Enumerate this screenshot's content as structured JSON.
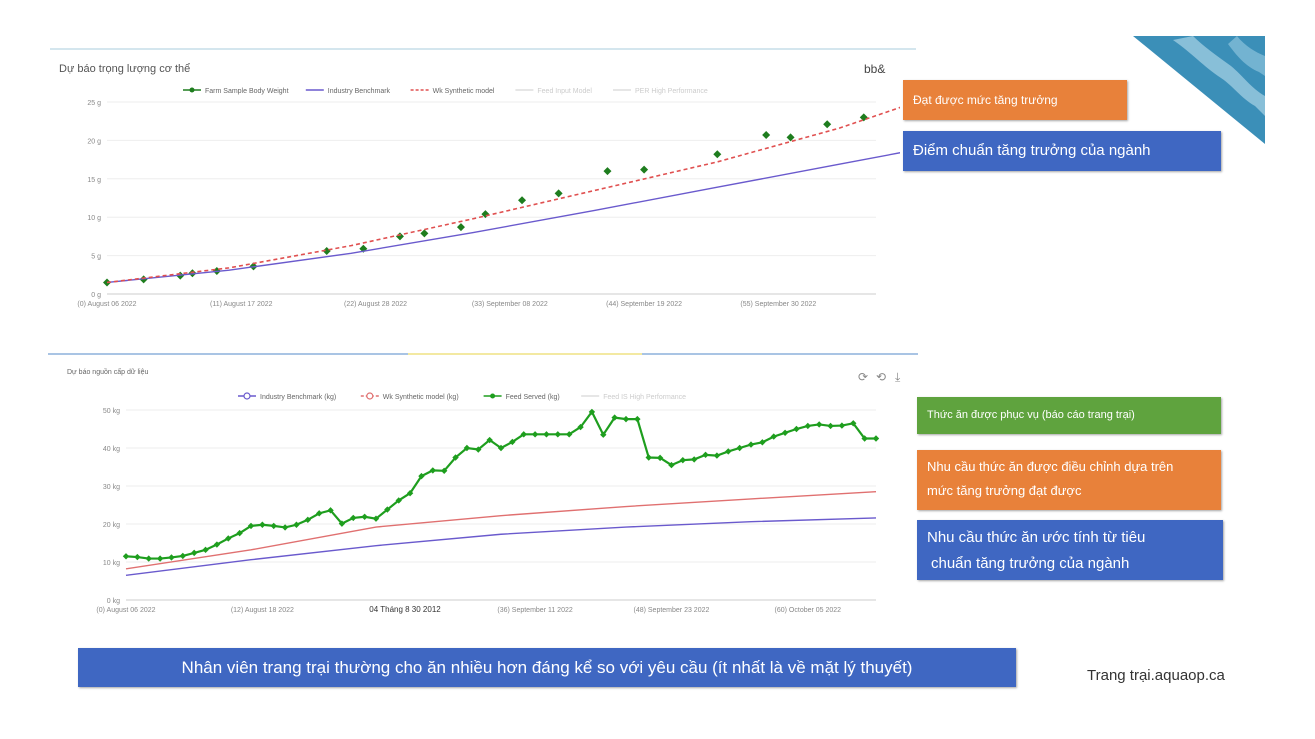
{
  "chart_data": [
    {
      "type": "line",
      "title": "Dự báo trọng lượng cơ thể",
      "corner_label": "bb&",
      "legend": [
        "Farm Sample Body Weight",
        "Industry Benchmark",
        "Wk Synthetic model",
        "Feed Input Model",
        "PER High Performance"
      ],
      "ylim": [
        0,
        25
      ],
      "yticks": [
        "0 g",
        "5 g",
        "10 g",
        "15 g",
        "20 g",
        "25 g"
      ],
      "xlim": [
        0,
        63
      ],
      "xticks": [
        {
          "x": 0,
          "label": "(0) August 06 2022"
        },
        {
          "x": 11,
          "label": "(11) August 17 2022"
        },
        {
          "x": 22,
          "label": "(22) August 28 2022"
        },
        {
          "x": 33,
          "label": "(33) September 08 2022"
        },
        {
          "x": 44,
          "label": "(44) September 19 2022"
        },
        {
          "x": 55,
          "label": "(55) September 30 2022"
        }
      ],
      "series": [
        {
          "name": "Farm Sample Body Weight",
          "color": "#1e7d1e",
          "x": [
            0,
            3,
            6,
            7,
            9,
            12,
            18,
            21,
            24,
            26,
            29,
            31,
            34,
            37,
            41,
            44,
            50,
            54,
            56,
            59,
            62
          ],
          "y": [
            1.5,
            1.9,
            2.4,
            2.7,
            3.0,
            3.6,
            5.6,
            5.9,
            7.5,
            7.9,
            8.7,
            10.4,
            12.2,
            13.1,
            16.0,
            16.2,
            18.2,
            20.7,
            20.4,
            22.1,
            23.0
          ]
        },
        {
          "name": "Industry Benchmark",
          "color": "#6a5acd",
          "x": [
            0,
            10,
            20,
            30,
            40,
            50,
            60,
            65
          ],
          "y": [
            1.5,
            3.1,
            5.3,
            8.0,
            10.9,
            13.9,
            16.9,
            18.4
          ]
        },
        {
          "name": "Wk Synthetic model",
          "color": "#e05050",
          "x": [
            0,
            10,
            20,
            30,
            40,
            50,
            60,
            65
          ],
          "y": [
            1.5,
            3.4,
            6.3,
            9.8,
            13.5,
            17.2,
            21.6,
            24.3
          ]
        }
      ]
    },
    {
      "type": "line",
      "title": "Dự báo nguồn cấp dữ liệu",
      "legend": [
        "Industry Benchmark (kg)",
        "Wk Synthetic model (kg)",
        "Feed Served (kg)",
        "Feed IS High Performance"
      ],
      "ylim": [
        0,
        50
      ],
      "yticks": [
        "0 kg",
        "10 kg",
        "20 kg",
        "30 kg",
        "40 kg",
        "50 kg"
      ],
      "xlim": [
        0,
        66
      ],
      "xticks": [
        {
          "x": 0,
          "label": "(0) August 06 2022"
        },
        {
          "x": 12,
          "label": "(12) August 18 2022"
        },
        {
          "x": 36,
          "label": "(36) September 11 2022"
        },
        {
          "x": 48,
          "label": "(48) September 23 2022"
        },
        {
          "x": 60,
          "label": "(60) October 05 2022"
        }
      ],
      "annotation": "04 Tháng 8 30 2012",
      "series": [
        {
          "name": "Industry Benchmark (kg)",
          "color": "#6a5acd",
          "x": [
            0,
            11,
            22,
            33,
            44,
            55,
            66
          ],
          "y": [
            6.5,
            10.6,
            14.3,
            17.3,
            19.2,
            20.6,
            21.6
          ]
        },
        {
          "name": "Wk Synthetic model (kg)",
          "color": "#e07070",
          "x": [
            0,
            11,
            22,
            33,
            44,
            55,
            66
          ],
          "y": [
            8.2,
            13.2,
            19.2,
            22.2,
            24.6,
            26.6,
            28.5
          ]
        },
        {
          "name": "Feed Served (kg)",
          "color": "#1e9e1e",
          "x": [
            0,
            1,
            2,
            3,
            4,
            5,
            6,
            7,
            8,
            9,
            10,
            11,
            12,
            13,
            14,
            15,
            16,
            17,
            18,
            19,
            20,
            21,
            22,
            23,
            24,
            25,
            26,
            27,
            28,
            29,
            30,
            31,
            32,
            33,
            34,
            35,
            36,
            37,
            38,
            39,
            40,
            41,
            42,
            43,
            44,
            45,
            46,
            47,
            48,
            49,
            50,
            51,
            52,
            53,
            54,
            55,
            56,
            57,
            58,
            59,
            60,
            61,
            62,
            63,
            64,
            65,
            66
          ],
          "y": [
            11.5,
            11.3,
            10.9,
            10.9,
            11.2,
            11.6,
            12.4,
            13.2,
            14.6,
            16.2,
            17.6,
            19.5,
            19.8,
            19.5,
            19.1,
            19.8,
            21.1,
            22.8,
            23.6,
            20.1,
            21.6,
            21.9,
            21.4,
            23.8,
            26.2,
            28.1,
            32.6,
            34.1,
            34.0,
            37.5,
            40.0,
            39.6,
            42.1,
            40.0,
            41.6,
            43.6,
            43.6,
            43.6,
            43.6,
            43.6,
            45.5,
            49.5,
            43.5,
            48.0,
            47.6,
            47.6,
            37.5,
            37.4,
            35.5,
            36.8,
            37.0,
            38.2,
            38.0,
            39.1,
            40.0,
            40.9,
            41.5,
            43.0,
            44.0,
            45.0,
            45.8,
            46.2,
            45.8,
            45.9,
            46.5,
            42.5,
            42.5
          ]
        }
      ]
    }
  ],
  "callouts": {
    "top_orange": "Đạt được mức tăng trưởng",
    "top_blue": "Điểm chuẩn tăng trưởng của ngành",
    "green": "Thức ăn được phục vụ (báo cáo trang trại)",
    "orange_line1": "Nhu cầu thức ăn được điều chỉnh dựa trên",
    "orange_line2": "mức tăng trưởng đạt được",
    "blue_line1": "Nhu cầu thức ăn ước tính từ tiêu",
    "blue_line2": "chuẩn tăng trưởng của ngành"
  },
  "banner": "Nhân viên trang trại thường cho ăn nhiều hơn đáng kể so với yêu cầu (ít nhất là về mặt lý thuyết)",
  "footer": "Trang trại.aquaop.ca",
  "colors": {
    "orange": "#e8813a",
    "blue": "#3f67c2",
    "green": "#5fa33e",
    "teal": "#3b8fb8"
  }
}
